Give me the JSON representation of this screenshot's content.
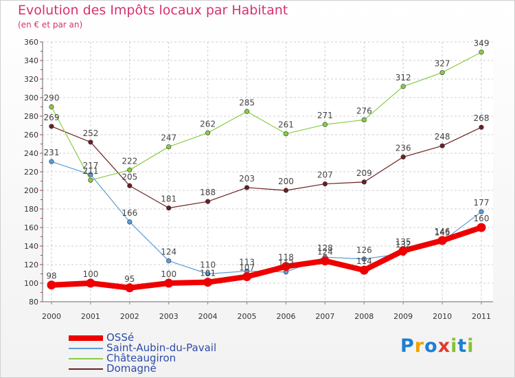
{
  "chart_data": {
    "type": "line",
    "title": "Evolution des Impôts locaux par Habitant",
    "subtitle": "(en € et par an)",
    "xlabel": "",
    "ylabel": "",
    "categories": [
      "2000",
      "2001",
      "2002",
      "2003",
      "2004",
      "2005",
      "2006",
      "2007",
      "2008",
      "2009",
      "2010",
      "2011"
    ],
    "ylim": [
      80,
      360
    ],
    "yticks": [
      "80",
      "100",
      "120",
      "140",
      "160",
      "180",
      "200",
      "220",
      "240",
      "260",
      "280",
      "300",
      "320",
      "340",
      "360"
    ],
    "grid": "horizontal dashed",
    "series": [
      {
        "name": "OSSé",
        "color": "#ee0000",
        "values": [
          98,
          100,
          95,
          100,
          101,
          107,
          118,
          124,
          114,
          135,
          146,
          160
        ],
        "labels": [
          "98",
          "100",
          "95",
          "100",
          "101",
          "107",
          "118",
          "124",
          "114",
          "135",
          "146",
          "160"
        ]
      },
      {
        "name": "Saint-Aubin-du-Pavail",
        "color": "#5b9bd5",
        "values": [
          231,
          217,
          166,
          124,
          110,
          113,
          112,
          128,
          126,
          132,
          145,
          177
        ],
        "labels": [
          "231",
          "217",
          "166",
          "124",
          "110",
          "113",
          "112",
          "128",
          "126",
          "132",
          "145",
          "177"
        ]
      },
      {
        "name": "Châteaugiron",
        "color": "#88cc44",
        "values": [
          290,
          211,
          222,
          247,
          262,
          285,
          261,
          271,
          276,
          312,
          327,
          349
        ],
        "labels": [
          "290",
          "211",
          "222",
          "247",
          "262",
          "285",
          "261",
          "271",
          "276",
          "312",
          "327",
          "349"
        ]
      },
      {
        "name": "Domagné",
        "color": "#6b1f22",
        "values": [
          269,
          252,
          205,
          181,
          188,
          203,
          200,
          207,
          209,
          236,
          248,
          268
        ],
        "labels": [
          "269",
          "252",
          "205",
          "181",
          "188",
          "203",
          "200",
          "207",
          "209",
          "236",
          "248",
          "268"
        ]
      }
    ],
    "legend_position": "bottom-left"
  },
  "logo": {
    "letters": [
      "P",
      "r",
      "o",
      "x",
      "i",
      "t",
      "i"
    ],
    "colors": [
      "#1e7fd0",
      "#f0a000",
      "#1e7fd0",
      "#e03a2e",
      "#88c030",
      "#1e7fd0",
      "#88c030"
    ]
  }
}
